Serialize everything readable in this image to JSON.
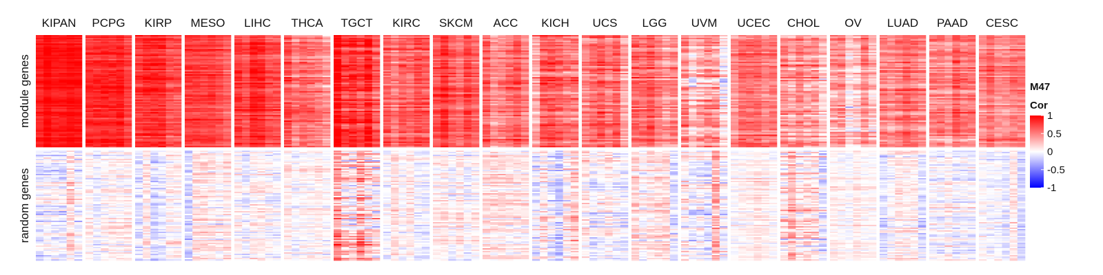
{
  "chart_data": {
    "type": "heatmap",
    "title": "",
    "columns": [
      "KIPAN",
      "PCPG",
      "KIRP",
      "MESO",
      "LIHC",
      "THCA",
      "TGCT",
      "KIRC",
      "SKCM",
      "ACC",
      "KICH",
      "UCS",
      "LGG",
      "UVM",
      "UCEC",
      "CHOL",
      "OV",
      "LUAD",
      "PAAD",
      "CESC"
    ],
    "row_groups": [
      "module genes",
      "random genes"
    ],
    "value_range": [
      -1,
      1
    ],
    "colorscale": [
      "#0000ff",
      "#ffffff",
      "#ff0000"
    ],
    "legend": {
      "title_line1": "M47",
      "title_line2": "Cor",
      "ticks": [
        1,
        0.5,
        0,
        -0.5,
        -1
      ],
      "tick_labels": [
        "1",
        "0.5",
        "0",
        "-0.5",
        "-1"
      ]
    },
    "mean_correlation": {
      "module genes": [
        0.92,
        0.8,
        0.78,
        0.74,
        0.76,
        0.58,
        0.82,
        0.6,
        0.62,
        0.55,
        0.58,
        0.52,
        0.5,
        0.38,
        0.5,
        0.42,
        0.32,
        0.48,
        0.5,
        0.52
      ],
      "random genes": [
        0.05,
        0.02,
        0.03,
        0.04,
        0.03,
        0.02,
        0.15,
        0.02,
        0.03,
        0.03,
        0.02,
        0.03,
        0.02,
        0.01,
        0.02,
        0.1,
        0.02,
        0.03,
        0.02,
        0.02
      ]
    },
    "spread": {
      "module genes": [
        0.08,
        0.12,
        0.14,
        0.12,
        0.14,
        0.2,
        0.22,
        0.18,
        0.16,
        0.2,
        0.22,
        0.2,
        0.2,
        0.28,
        0.18,
        0.26,
        0.22,
        0.18,
        0.2,
        0.16
      ],
      "random genes": [
        0.18,
        0.14,
        0.15,
        0.16,
        0.15,
        0.12,
        0.32,
        0.12,
        0.14,
        0.17,
        0.2,
        0.18,
        0.18,
        0.22,
        0.1,
        0.24,
        0.1,
        0.15,
        0.16,
        0.13
      ]
    }
  }
}
